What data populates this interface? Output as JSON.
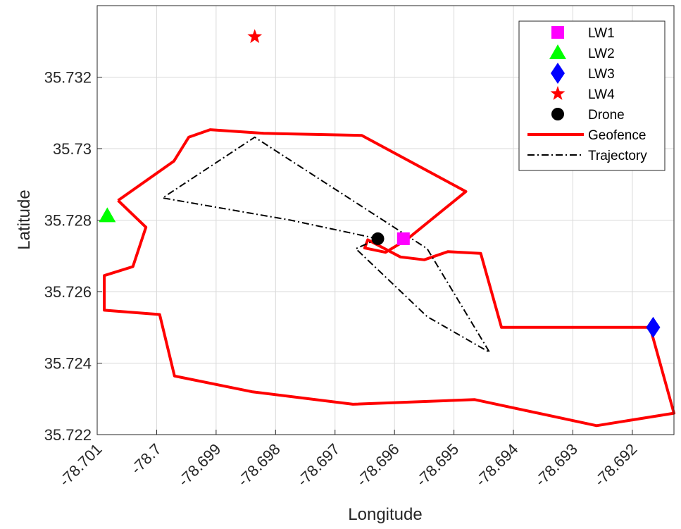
{
  "chart_data": {
    "type": "scatter",
    "title": "",
    "xlabel": "Longitude",
    "ylabel": "Latitude",
    "xlim": [
      -78.701,
      -78.6913
    ],
    "ylim": [
      35.722,
      35.734
    ],
    "grid": true,
    "legend_position": "top-right",
    "x_ticks": [
      {
        "value": -78.701,
        "label": "-78.701"
      },
      {
        "value": -78.7,
        "label": "-78.7"
      },
      {
        "value": -78.699,
        "label": "-78.699"
      },
      {
        "value": -78.698,
        "label": "-78.698"
      },
      {
        "value": -78.697,
        "label": "-78.697"
      },
      {
        "value": -78.696,
        "label": "-78.696"
      },
      {
        "value": -78.695,
        "label": "-78.695"
      },
      {
        "value": -78.694,
        "label": "-78.694"
      },
      {
        "value": -78.693,
        "label": "-78.693"
      },
      {
        "value": -78.692,
        "label": "-78.692"
      }
    ],
    "y_ticks": [
      {
        "value": 35.722,
        "label": "35.722"
      },
      {
        "value": 35.724,
        "label": "35.724"
      },
      {
        "value": 35.726,
        "label": "35.726"
      },
      {
        "value": 35.728,
        "label": "35.728"
      },
      {
        "value": 35.73,
        "label": "35.73"
      },
      {
        "value": 35.732,
        "label": "35.732"
      }
    ],
    "markers": [
      {
        "name": "LW1",
        "symbol": "square",
        "color": "#ff00ff",
        "x": -78.69585,
        "y": 35.72748
      },
      {
        "name": "LW2",
        "symbol": "triangle",
        "color": "#00ff00",
        "x": -78.70083,
        "y": 35.72812
      },
      {
        "name": "LW3",
        "symbol": "diamond",
        "color": "#0000ff",
        "x": -78.69165,
        "y": 35.725
      },
      {
        "name": "LW4",
        "symbol": "star",
        "color": "#ff0000",
        "x": -78.69835,
        "y": 35.73313
      },
      {
        "name": "Drone",
        "symbol": "circle",
        "color": "#000000",
        "x": -78.69628,
        "y": 35.72748
      }
    ],
    "series": [
      {
        "name": "Geofence",
        "style": "solid",
        "color": "#ff0000",
        "points": [
          [
            -78.70065,
            35.72855
          ],
          [
            -78.69971,
            35.72965
          ],
          [
            -78.69946,
            35.73032
          ],
          [
            -78.6991,
            35.73053
          ],
          [
            -78.6982,
            35.73043
          ],
          [
            -78.69795,
            35.73042
          ],
          [
            -78.69655,
            35.73037
          ],
          [
            -78.6948,
            35.7288
          ],
          [
            -78.6958,
            35.72745
          ],
          [
            -78.69615,
            35.7271
          ],
          [
            -78.6965,
            35.72722
          ],
          [
            -78.69645,
            35.72745
          ],
          [
            -78.6959,
            35.72697
          ],
          [
            -78.6955,
            35.72689
          ],
          [
            -78.6951,
            35.72712
          ],
          [
            -78.69455,
            35.72707
          ],
          [
            -78.6942,
            35.725
          ],
          [
            -78.6917,
            35.725
          ],
          [
            -78.6913,
            35.7226
          ],
          [
            -78.6926,
            35.72225
          ],
          [
            -78.69465,
            35.72298
          ],
          [
            -78.6967,
            35.72285
          ],
          [
            -78.6984,
            35.7232
          ],
          [
            -78.6997,
            35.72364
          ],
          [
            -78.69995,
            35.72536
          ],
          [
            -78.70088,
            35.72548
          ],
          [
            -78.70088,
            35.72645
          ],
          [
            -78.7004,
            35.7267
          ],
          [
            -78.70018,
            35.7278
          ],
          [
            -78.70065,
            35.72855
          ]
        ]
      },
      {
        "name": "Trajectory",
        "style": "dash-dot",
        "color": "#000000",
        "points": [
          [
            -78.69628,
            35.72748
          ],
          [
            -78.69775,
            35.728
          ],
          [
            -78.6999,
            35.72862
          ],
          [
            -78.69835,
            35.73032
          ],
          [
            -78.69545,
            35.7272
          ],
          [
            -78.6944,
            35.7243
          ],
          [
            -78.69545,
            35.7253
          ],
          [
            -78.69665,
            35.7272
          ],
          [
            -78.69628,
            35.72748
          ]
        ]
      }
    ]
  }
}
